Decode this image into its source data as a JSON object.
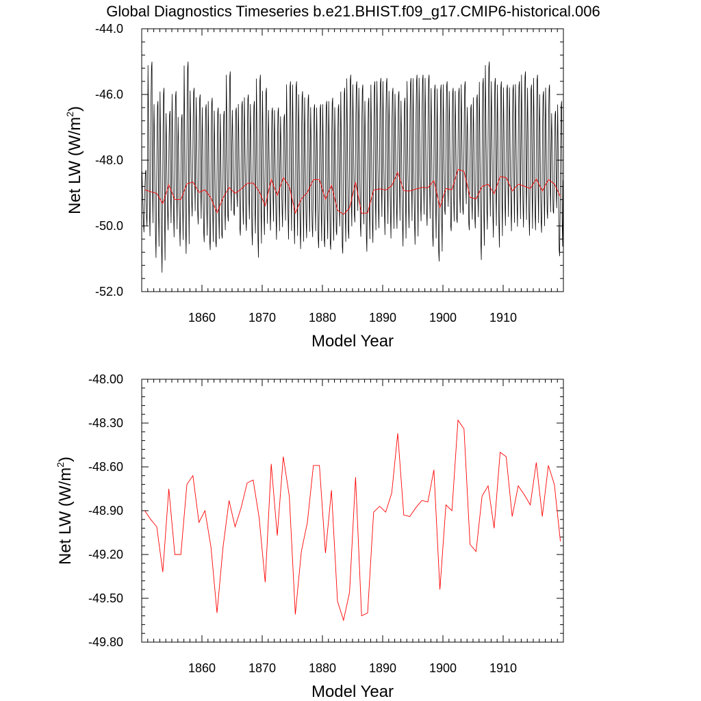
{
  "figure": {
    "title": "Global Diagnostics Timeseries b.e21.BHIST.f09_g17.CMIP6-historical.006"
  },
  "chart_data": [
    {
      "type": "line",
      "xlabel": "Model Year",
      "ylabel_main": "Net LW (W/m",
      "ylabel_sup": "2",
      "ylabel_close": ")",
      "xlim": [
        1850,
        1920
      ],
      "ylim": [
        -52.0,
        -44.0
      ],
      "x_ticks": [
        1860,
        1870,
        1880,
        1890,
        1900,
        1910
      ],
      "y_ticks": [
        -44.0,
        -46.0,
        -48.0,
        -50.0,
        -52.0
      ],
      "y_tick_labels": [
        "-44.0",
        "-46.0",
        "-48.0",
        "-50.0",
        "-52.0"
      ],
      "grid": false,
      "series": [
        {
          "kind": "monthly",
          "color": "#000000",
          "summer_peaks": [
            -48.3,
            -45.0,
            -46.2,
            -45.8,
            -46.5,
            -45.9,
            -46.6,
            -45.0,
            -45.8,
            -46.0,
            -46.3,
            -46.1,
            -46.4,
            -46.5,
            -45.3,
            -46.4,
            -46.2,
            -46.0,
            -46.2,
            -45.4,
            -45.8,
            -46.4,
            -46.4,
            -46.6,
            -45.6,
            -45.6,
            -45.9,
            -46.0,
            -46.3,
            -46.3,
            -46.2,
            -46.1,
            -46.3,
            -45.8,
            -45.4,
            -45.6,
            -45.7,
            -46.1,
            -45.6,
            -45.5,
            -45.5,
            -45.8,
            -45.9,
            -46.1,
            -45.5,
            -45.4,
            -45.4,
            -45.4,
            -45.7,
            -45.7,
            -45.6,
            -45.8,
            -45.8,
            -45.6,
            -46.3,
            -46.0,
            -45.5,
            -45.0,
            -45.5,
            -45.6,
            -45.7,
            -45.7,
            -45.6,
            -45.3,
            -45.7,
            -45.4,
            -45.9,
            -45.7,
            -46.5,
            -46.2
          ],
          "winter_troughs": [
            -50.2,
            -50.5,
            -51.1,
            -51.6,
            -50.2,
            -50.5,
            -50.8,
            -51.2,
            -50.0,
            -50.3,
            -50.9,
            -51.2,
            -51.1,
            -50.8,
            -50.3,
            -50.0,
            -50.6,
            -50.4,
            -50.8,
            -51.2,
            -50.4,
            -50.2,
            -50.5,
            -50.1,
            -50.6,
            -50.8,
            -51.0,
            -50.7,
            -50.7,
            -51.1,
            -51.1,
            -51.2,
            -50.7,
            -51.3,
            -50.8,
            -50.2,
            -50.6,
            -51.0,
            -50.7,
            -50.2,
            -50.4,
            -50.5,
            -50.2,
            -50.8,
            -50.3,
            -50.9,
            -50.2,
            -50.4,
            -51.1,
            -51.6,
            -50.1,
            -50.6,
            -50.3,
            -50.0,
            -50.4,
            -50.3,
            -51.3,
            -50.3,
            -50.5,
            -50.8,
            -50.1,
            -50.3,
            -50.2,
            -50.3,
            -50.6,
            -50.5,
            -50.6,
            -50.2,
            -50.0,
            -51.4
          ]
        },
        {
          "kind": "annual",
          "color": "#ff0000",
          "x": [
            1850.5,
            1851.5,
            1852.5,
            1853.5,
            1854.5,
            1855.5,
            1856.5,
            1857.5,
            1858.5,
            1859.5,
            1860.5,
            1861.5,
            1862.5,
            1863.5,
            1864.5,
            1865.5,
            1866.5,
            1867.5,
            1868.5,
            1869.5,
            1870.5,
            1871.5,
            1872.5,
            1873.5,
            1874.5,
            1875.5,
            1876.5,
            1877.5,
            1878.5,
            1879.5,
            1880.5,
            1881.5,
            1882.5,
            1883.5,
            1884.5,
            1885.5,
            1886.5,
            1887.5,
            1888.5,
            1889.5,
            1890.5,
            1891.5,
            1892.5,
            1893.5,
            1894.5,
            1895.5,
            1896.5,
            1897.5,
            1898.5,
            1899.5,
            1900.5,
            1901.5,
            1902.5,
            1903.5,
            1904.5,
            1905.5,
            1906.5,
            1907.5,
            1908.5,
            1909.5,
            1910.5,
            1911.5,
            1912.5,
            1913.5,
            1914.5,
            1915.5,
            1916.5,
            1917.5,
            1918.5,
            1919.5
          ],
          "y": [
            -48.9,
            -48.96,
            -49.01,
            -49.32,
            -48.75,
            -49.2,
            -49.2,
            -48.72,
            -48.66,
            -48.98,
            -48.9,
            -49.15,
            -49.6,
            -49.15,
            -48.83,
            -49.01,
            -48.88,
            -48.71,
            -48.69,
            -48.95,
            -49.39,
            -48.58,
            -49.07,
            -48.53,
            -48.8,
            -49.61,
            -49.18,
            -48.98,
            -48.59,
            -48.59,
            -49.19,
            -48.76,
            -49.52,
            -49.65,
            -49.46,
            -48.67,
            -49.62,
            -49.6,
            -48.91,
            -48.87,
            -48.91,
            -48.78,
            -48.37,
            -48.93,
            -48.94,
            -48.88,
            -48.83,
            -48.84,
            -48.62,
            -49.44,
            -48.86,
            -48.9,
            -48.28,
            -48.34,
            -49.13,
            -49.18,
            -48.8,
            -48.73,
            -49.02,
            -48.5,
            -48.53,
            -48.94,
            -48.73,
            -48.79,
            -48.86,
            -48.57,
            -48.94,
            -48.59,
            -48.72,
            -49.11
          ]
        }
      ]
    },
    {
      "type": "line",
      "xlabel": "Model Year",
      "ylabel_main": "Net LW (W/m",
      "ylabel_sup": "2",
      "ylabel_close": ")",
      "xlim": [
        1850,
        1920
      ],
      "ylim": [
        -49.8,
        -48.0
      ],
      "x_ticks": [
        1860,
        1870,
        1880,
        1890,
        1900,
        1910
      ],
      "y_ticks": [
        -48.0,
        -48.3,
        -48.6,
        -48.9,
        -49.2,
        -49.5,
        -49.8
      ],
      "y_tick_labels": [
        "-48.00",
        "-48.30",
        "-48.60",
        "-48.90",
        "-49.20",
        "-49.50",
        "-49.80"
      ],
      "grid": false,
      "series": [
        {
          "kind": "annual",
          "color": "#ff0000",
          "same_as": "annual"
        }
      ]
    }
  ]
}
